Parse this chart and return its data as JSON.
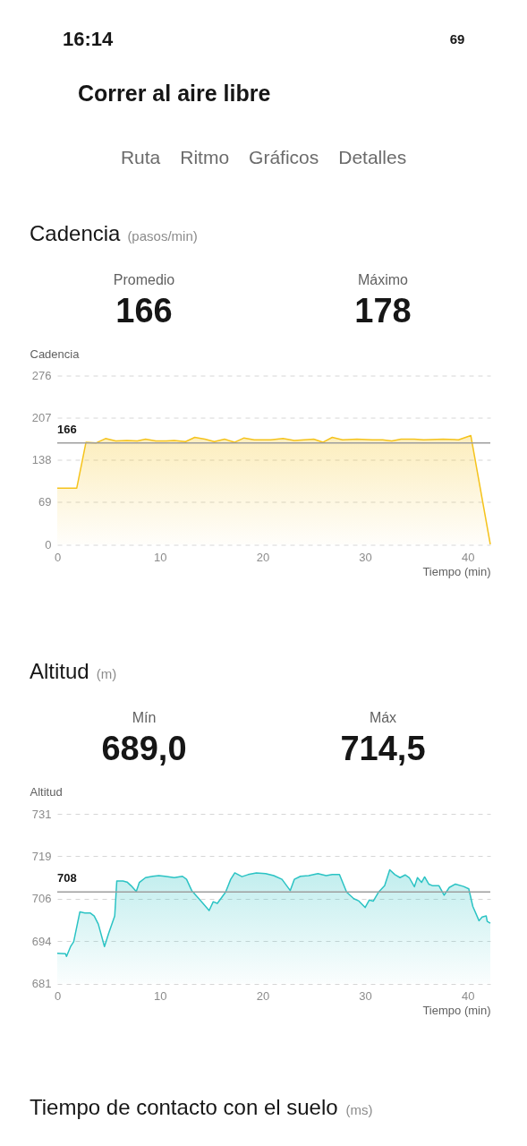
{
  "chart_data": [
    {
      "type": "other",
      "title": "Correr al aire libre",
      "annotations": [
        "16:14",
        "69",
        "Ruta",
        "Ritmo",
        "Gráficos",
        "Detalles"
      ]
    },
    {
      "type": "area",
      "title": "Cadencia",
      "subtitle": "(pasos/min)",
      "annotations": [
        "Promedio",
        "166",
        "Máximo",
        "178"
      ],
      "xlabel": "Tiempo (min)",
      "ylabel": "Cadencia",
      "x": [
        0,
        1.9,
        2.8,
        3.8,
        4.7,
        5.7,
        6.8,
        7.8,
        8.6,
        9.6,
        10.6,
        11.4,
        12.5,
        13.4,
        14.4,
        15.3,
        16.3,
        17.3,
        18.2,
        19.2,
        20.8,
        22.0,
        23.1,
        25.0,
        25.9,
        26.8,
        27.8,
        29.2,
        30.7,
        31.7,
        32.6,
        33.5,
        34.8,
        35.7,
        37.6,
        39.1,
        40.3,
        42.2
      ],
      "series": [
        {
          "color": "#f5c31c",
          "values": [
            92,
            92,
            167,
            166,
            173,
            169,
            170,
            169,
            172,
            169,
            169,
            170,
            168,
            175,
            172,
            168,
            172,
            167,
            174,
            171,
            171,
            173,
            170,
            172,
            167,
            175,
            171,
            172,
            171,
            171,
            169,
            172,
            172,
            171,
            172,
            171,
            178,
            0
          ]
        }
      ],
      "xlim": [
        0,
        42.2
      ],
      "ylim": [
        0,
        276
      ],
      "xticks": [
        0,
        10,
        20,
        30,
        40
      ],
      "yticks": [
        0,
        69,
        138,
        207,
        276
      ],
      "grid": "y",
      "ref_lines": [
        {
          "axis": "y",
          "value": 166,
          "label": "166",
          "color": "#9e9e9e"
        }
      ]
    },
    {
      "type": "area",
      "title": "Altitud",
      "subtitle": "(m)",
      "annotations": [
        "Mín",
        "689,0",
        "Máx",
        "714,5"
      ],
      "xlabel": "Tiempo (min)",
      "ylabel": "Altitud",
      "x": [
        0,
        0.8,
        0.9,
        1.3,
        1.6,
        2.2,
        2.7,
        3.2,
        3.6,
        4.0,
        4.6,
        5.0,
        5.6,
        5.8,
        6.4,
        6.8,
        7.2,
        7.7,
        8.0,
        8.6,
        9.3,
        9.9,
        10.5,
        11.4,
        12.2,
        12.6,
        13.1,
        13.8,
        14.2,
        14.8,
        15.2,
        15.6,
        16.4,
        16.9,
        17.3,
        18.0,
        18.6,
        19.4,
        20.3,
        21.1,
        21.9,
        22.7,
        23.1,
        23.7,
        24.5,
        25.4,
        26.2,
        26.8,
        27.5,
        28.2,
        28.9,
        29.4,
        30.0,
        30.4,
        30.8,
        31.3,
        31.9,
        32.4,
        32.9,
        33.4,
        33.9,
        34.3,
        34.8,
        35.1,
        35.5,
        35.8,
        36.2,
        36.6,
        37.2,
        37.7,
        38.2,
        38.8,
        39.6,
        40.1,
        40.5,
        41.1,
        41.4,
        41.8,
        41.9,
        42.2
      ],
      "series": [
        {
          "color": "#2bc3c4",
          "values": [
            689.9,
            689.8,
            689.0,
            691.9,
            693.3,
            702.1,
            701.8,
            701.8,
            700.9,
            698.5,
            691.9,
            695.7,
            700.9,
            711.2,
            711.2,
            710.9,
            709.8,
            708.1,
            710.8,
            712.2,
            712.6,
            712.8,
            712.6,
            712.2,
            712.6,
            711.7,
            708.4,
            706.0,
            704.6,
            702.5,
            705.1,
            704.6,
            707.9,
            711.7,
            713.6,
            712.5,
            713.1,
            713.6,
            713.4,
            712.8,
            711.7,
            708.4,
            711.7,
            712.6,
            712.8,
            713.4,
            712.8,
            713.1,
            713.1,
            707.9,
            706.0,
            705.3,
            703.4,
            705.6,
            705.3,
            707.9,
            709.8,
            714.5,
            713.1,
            712.2,
            713.0,
            712.2,
            709.5,
            712.2,
            710.8,
            712.4,
            710.3,
            709.8,
            709.8,
            707.0,
            709.3,
            710.3,
            709.6,
            708.9,
            703.7,
            699.5,
            700.6,
            700.9,
            699.3,
            698.8
          ]
        }
      ],
      "xlim": [
        0,
        42.2
      ],
      "ylim": [
        681,
        731
      ],
      "xticks": [
        0,
        10,
        20,
        30,
        40
      ],
      "yticks": [
        681,
        {
          "value": 693.5,
          "label": "694"
        },
        706,
        {
          "value": 718.5,
          "label": "719"
        },
        731
      ],
      "grid": "y",
      "ref_lines": [
        {
          "axis": "y",
          "value": 708,
          "label": "708",
          "color": "#9e9e9e"
        }
      ]
    },
    {
      "type": "other",
      "title": "Tiempo de contacto con el suelo",
      "subtitle": "(ms)"
    }
  ]
}
